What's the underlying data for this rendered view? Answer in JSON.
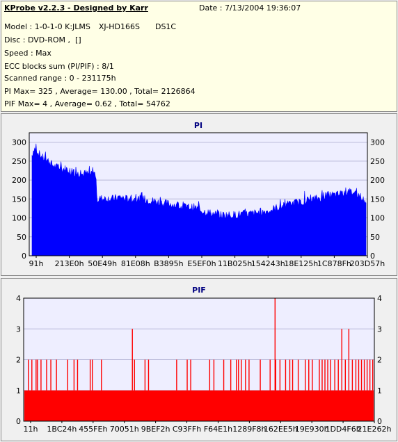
{
  "header": {
    "title": "KProbe v2.2.3 - Designed by Karr",
    "date": "Date : 7/13/2004 19:36:07",
    "model_label": "Model : 1-0-1-0 K:JLMS",
    "drive": "XJ-HD166S",
    "firmware": "DS1C",
    "disc": "Disc : DVD-ROM ,  []",
    "speed": "Speed : Max",
    "ecc": "ECC blocks sum (PI/PIF) : 8/1",
    "scanned": "Scanned range : 0 - 231175h",
    "pi_stats": "PI Max= 325 , Average= 130.00 , Total= 2126864",
    "pif_stats": "PIF Max= 4 , Average= 0.62 , Total= 54762"
  },
  "colors": {
    "info_bg": "#ffffe6",
    "plot_bg": "#eeeeff",
    "pi_fill": "#0000ff",
    "pif_fill": "#ff0000",
    "title_color": "#000080"
  },
  "chart_data": [
    {
      "type": "area",
      "title": "PI",
      "ylim": [
        0,
        325
      ],
      "y_ticks": [
        0,
        50,
        100,
        150,
        200,
        250,
        300
      ],
      "x_tick_labels": [
        "91h",
        "213E0h",
        "50E49h",
        "81E08h",
        "B3895h",
        "E5EF0h",
        "11B025h",
        "154243h",
        "18E125h",
        "1C878Fh",
        "203D57h"
      ],
      "grid": true,
      "series": [
        {
          "x": [
            0,
            3,
            6,
            10,
            15,
            20,
            25,
            30,
            35,
            40,
            45,
            50,
            55,
            60,
            65,
            70,
            75,
            80,
            85,
            90,
            94,
            96,
            98,
            100,
            102,
            105,
            110,
            120,
            130,
            140,
            150,
            160,
            170,
            180,
            190,
            200,
            210,
            220,
            230,
            240,
            250,
            260,
            270,
            280,
            290,
            300,
            310,
            320,
            330,
            340,
            350,
            360,
            370,
            380,
            390,
            400,
            410,
            420,
            430,
            440,
            450,
            455,
            460,
            465,
            470,
            475,
            480,
            485,
            490,
            495
          ],
          "y": [
            265,
            285,
            280,
            270,
            260,
            255,
            250,
            240,
            235,
            232,
            228,
            230,
            225,
            222,
            218,
            216,
            215,
            218,
            214,
            220,
            215,
            150,
            148,
            150,
            152,
            150,
            152,
            150,
            155,
            150,
            148,
            150,
            148,
            145,
            140,
            138,
            135,
            130,
            128,
            128,
            120,
            115,
            110,
            108,
            108,
            108,
            110,
            110,
            112,
            115,
            118,
            125,
            130,
            135,
            140,
            142,
            148,
            150,
            155,
            160,
            160,
            162,
            165,
            170,
            168,
            168,
            165,
            160,
            150,
            135
          ]
        }
      ]
    },
    {
      "type": "bar",
      "title": "PIF",
      "ylim": [
        0,
        4
      ],
      "y_ticks": [
        0,
        1,
        2,
        3,
        4
      ],
      "x_tick_labels": [
        "11h",
        "1BC24h",
        "455FEh",
        "70051h",
        "9BEF2h",
        "C93FFh",
        "F64E1h",
        "1289F8h",
        "162EE5h",
        "19E930h",
        "1DD4F6h",
        "21E262h"
      ],
      "grid": true,
      "baseline": 1,
      "spikes": [
        {
          "x": 4,
          "y": 2
        },
        {
          "x": 9,
          "y": 2
        },
        {
          "x": 15,
          "y": 2
        },
        {
          "x": 17,
          "y": 2
        },
        {
          "x": 22,
          "y": 2
        },
        {
          "x": 30,
          "y": 2
        },
        {
          "x": 36,
          "y": 2
        },
        {
          "x": 44,
          "y": 2
        },
        {
          "x": 60,
          "y": 2
        },
        {
          "x": 69,
          "y": 2
        },
        {
          "x": 74,
          "y": 2
        },
        {
          "x": 92,
          "y": 2
        },
        {
          "x": 95,
          "y": 2
        },
        {
          "x": 108,
          "y": 2
        },
        {
          "x": 152,
          "y": 3
        },
        {
          "x": 155,
          "y": 2
        },
        {
          "x": 170,
          "y": 2
        },
        {
          "x": 175,
          "y": 2
        },
        {
          "x": 215,
          "y": 2
        },
        {
          "x": 230,
          "y": 2
        },
        {
          "x": 235,
          "y": 2
        },
        {
          "x": 262,
          "y": 2
        },
        {
          "x": 268,
          "y": 2
        },
        {
          "x": 282,
          "y": 2
        },
        {
          "x": 292,
          "y": 2
        },
        {
          "x": 300,
          "y": 2
        },
        {
          "x": 303,
          "y": 2
        },
        {
          "x": 307,
          "y": 2
        },
        {
          "x": 313,
          "y": 2
        },
        {
          "x": 318,
          "y": 2
        },
        {
          "x": 334,
          "y": 2
        },
        {
          "x": 348,
          "y": 2
        },
        {
          "x": 355,
          "y": 4
        },
        {
          "x": 356,
          "y": 2
        },
        {
          "x": 362,
          "y": 2
        },
        {
          "x": 370,
          "y": 2
        },
        {
          "x": 376,
          "y": 2
        },
        {
          "x": 380,
          "y": 2
        },
        {
          "x": 388,
          "y": 2
        },
        {
          "x": 398,
          "y": 2
        },
        {
          "x": 403,
          "y": 2
        },
        {
          "x": 408,
          "y": 2
        },
        {
          "x": 418,
          "y": 2
        },
        {
          "x": 422,
          "y": 2
        },
        {
          "x": 426,
          "y": 2
        },
        {
          "x": 430,
          "y": 2
        },
        {
          "x": 434,
          "y": 2
        },
        {
          "x": 440,
          "y": 2
        },
        {
          "x": 445,
          "y": 2
        },
        {
          "x": 450,
          "y": 3
        },
        {
          "x": 455,
          "y": 2
        },
        {
          "x": 460,
          "y": 3
        },
        {
          "x": 465,
          "y": 2
        },
        {
          "x": 470,
          "y": 2
        },
        {
          "x": 474,
          "y": 2
        },
        {
          "x": 478,
          "y": 2
        },
        {
          "x": 482,
          "y": 2
        },
        {
          "x": 486,
          "y": 2
        },
        {
          "x": 490,
          "y": 2
        },
        {
          "x": 494,
          "y": 2
        }
      ]
    }
  ]
}
